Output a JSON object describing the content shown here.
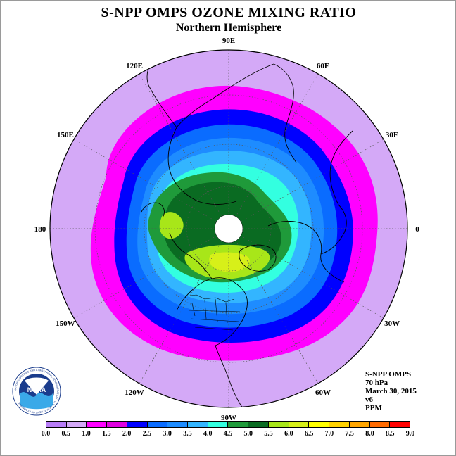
{
  "title": "S-NPP OMPS OZONE MIXING RATIO",
  "subtitle": "Northern Hemisphere",
  "map": {
    "projection": "north-polar-stereographic",
    "longitude_labels": [
      {
        "text": "90E",
        "lon": 90
      },
      {
        "text": "60E",
        "lon": 60
      },
      {
        "text": "30E",
        "lon": 30
      },
      {
        "text": "0",
        "lon": 0
      },
      {
        "text": "30W",
        "lon": -30
      },
      {
        "text": "60W",
        "lon": -60
      },
      {
        "text": "90W",
        "lon": -90
      },
      {
        "text": "120W",
        "lon": -120
      },
      {
        "text": "150W",
        "lon": -150
      },
      {
        "text": "180",
        "lon": 180
      },
      {
        "text": "150E",
        "lon": 150
      },
      {
        "text": "120E",
        "lon": 120
      }
    ],
    "background_color": "#d4a9f7",
    "graticule_color": "#555555",
    "pole_missing_color": "#ffffff"
  },
  "info": {
    "instrument": "S-NPP OMPS",
    "level": "70 hPa",
    "date": "March 30, 2015",
    "version": "v6",
    "units": "PPM"
  },
  "logo": {
    "text": "NOAA",
    "ring_text": "NATIONAL OCEANIC AND ATMOSPHERIC ADMINISTRATION · U.S. DEPARTMENT OF COMMERCE"
  },
  "colorbar": {
    "tick_labels": [
      "0.0",
      "0.5",
      "1.0",
      "1.5",
      "2.0",
      "2.5",
      "3.0",
      "3.5",
      "4.0",
      "4.5",
      "5.0",
      "5.5",
      "6.0",
      "6.5",
      "7.0",
      "7.5",
      "8.0",
      "8.5",
      "9.0"
    ],
    "colors": [
      "#b87df7",
      "#d4a9f7",
      "#ff00ff",
      "#e000e0",
      "#0000ff",
      "#0a6cff",
      "#1e8cff",
      "#33b5ff",
      "#33ffe0",
      "#1f9a3a",
      "#0a6b22",
      "#a8e619",
      "#d7f019",
      "#ffff00",
      "#ffd200",
      "#ffa500",
      "#ff6a00",
      "#ff0000",
      "#8b5a2b"
    ]
  }
}
